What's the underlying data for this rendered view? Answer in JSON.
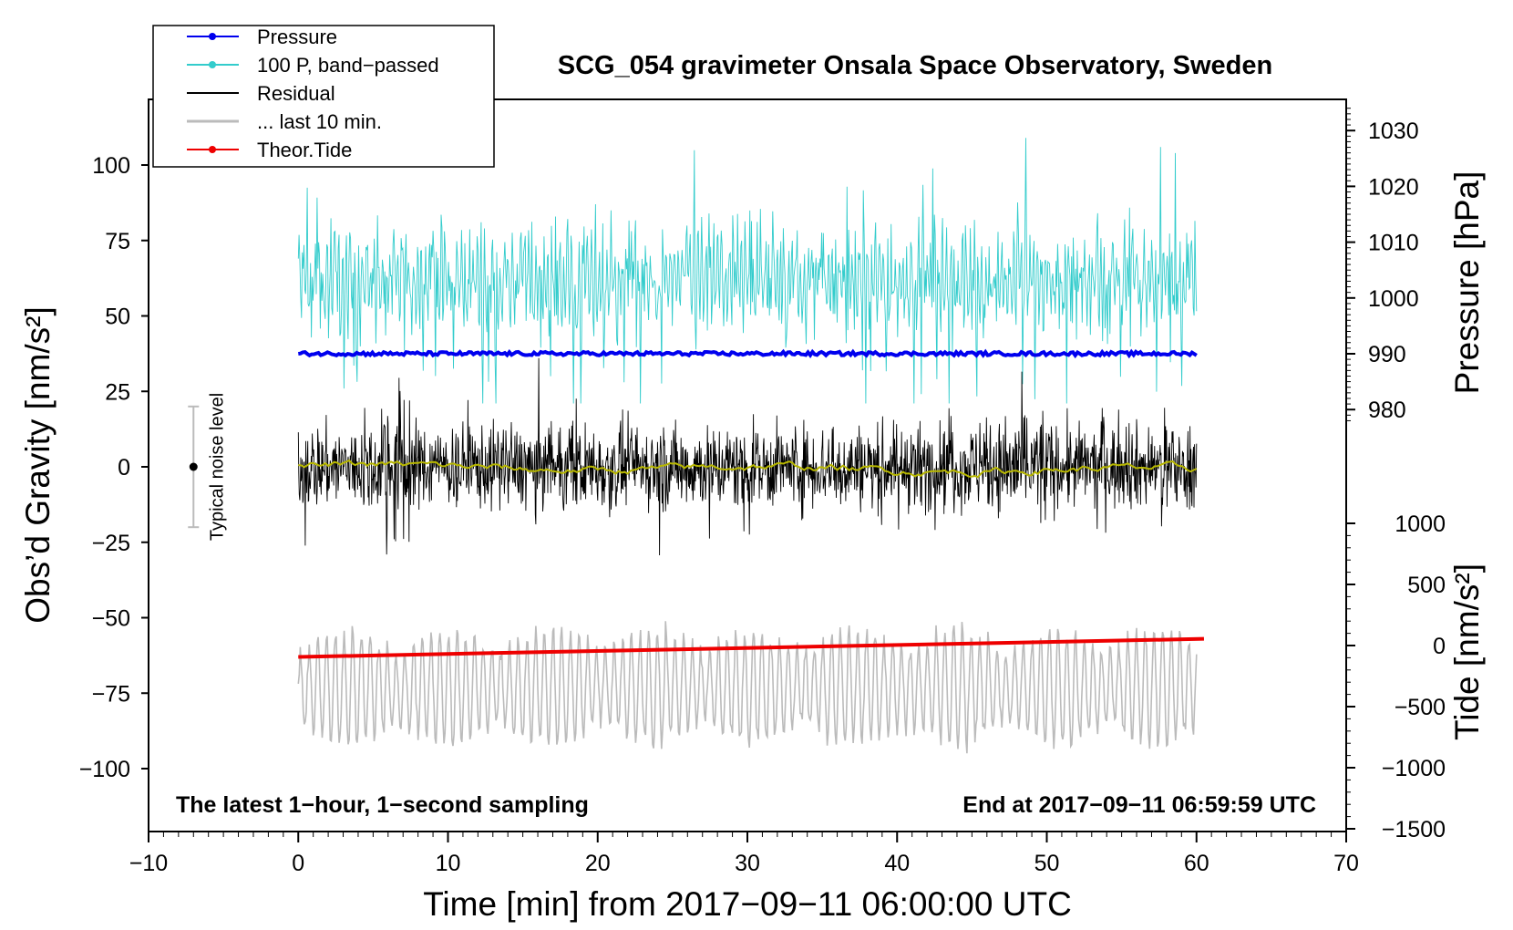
{
  "chart_data": {
    "type": "line",
    "title": "SCG_054 gravimeter Onsala Space Observatory, Sweden",
    "xlabel": "Time [min] from 2017−09−11 06:00:00 UTC",
    "ylabel_left": "Obs’d Gravity [nm/s²]",
    "ylabel_right_top": "Pressure [hPa]",
    "ylabel_right_bottom": "Tide [nm/s²]",
    "xlim": [
      -10,
      70
    ],
    "ylim_left": [
      -120,
      120
    ],
    "x_ticks": [
      "−10",
      "0",
      "10",
      "20",
      "30",
      "40",
      "50",
      "60",
      "70"
    ],
    "x_tick_values": [
      -10,
      0,
      10,
      20,
      30,
      40,
      50,
      60,
      70
    ],
    "y_left_ticks": [
      "100",
      "75",
      "50",
      "25",
      "0",
      "−25",
      "−50",
      "−75",
      "−100"
    ],
    "y_left_tick_values": [
      100,
      75,
      50,
      25,
      0,
      -25,
      -50,
      -75,
      -100
    ],
    "pressure_ticks": [
      "1030",
      "1020",
      "1010",
      "1000",
      "990",
      "980"
    ],
    "pressure_tick_values": [
      1030,
      1020,
      1010,
      1000,
      990,
      980
    ],
    "tide_ticks": [
      "1000",
      "500",
      "0",
      "−500",
      "−1000",
      "−1500"
    ],
    "tide_tick_values": [
      1000,
      500,
      0,
      -500,
      -1000,
      -1500
    ],
    "noise_level": {
      "label": "Typical noise level",
      "x": -7,
      "y": 0,
      "range": [
        -20,
        20
      ]
    },
    "annotation_left": "The latest 1−hour, 1−second sampling",
    "annotation_right": "End at 2017−09−11 06:59:59 UTC",
    "legend": [
      {
        "label": "Pressure",
        "color": "#0000ee",
        "marker": true
      },
      {
        "label": "100 P, band−passed",
        "color": "#33cccc",
        "marker": true
      },
      {
        "label": "Residual",
        "color": "#000000",
        "marker": false
      },
      {
        "label": "... last 10 min.",
        "color": "#bbbbbb",
        "marker": false
      },
      {
        "label": "Theor.Tide",
        "color": "#ee0000",
        "marker": true
      }
    ],
    "series": [
      {
        "name": "Pressure",
        "color": "#0000ee",
        "x_range": [
          0,
          60
        ],
        "y_level": 37.5,
        "approx_hPa": 990
      },
      {
        "name": "100 P, band−passed",
        "color": "#33cccc",
        "x_range": [
          0,
          60
        ],
        "center": 62,
        "min": 21,
        "max": 109
      },
      {
        "name": "Residual",
        "color": "#000000",
        "x_range": [
          0,
          60
        ],
        "center": 0,
        "min": -32,
        "max": 36
      },
      {
        "name": "Residual smoothed",
        "color": "#b8b800",
        "x_range": [
          0,
          60
        ],
        "center": 0
      },
      {
        "name": "... last 10 min.",
        "color": "#bbbbbb",
        "x_range": [
          0,
          60
        ],
        "center": -73,
        "min": -97,
        "max": -50
      },
      {
        "name": "Theor.Tide",
        "color": "#ee0000",
        "x": [
          0,
          60.5
        ],
        "y": [
          -63,
          -57
        ]
      }
    ]
  }
}
